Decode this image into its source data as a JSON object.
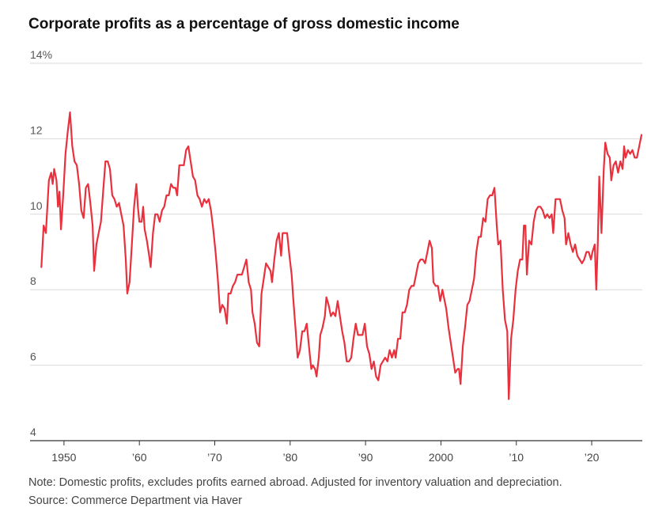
{
  "chart_data": {
    "type": "line",
    "title": "Corporate profits as a percentage of gross domestic income",
    "xlabel": "",
    "ylabel": "",
    "ylim": [
      4,
      14
    ],
    "xlim": [
      1945.5,
      2026.5
    ],
    "y_ticks": [
      {
        "value": 14,
        "label": "14%"
      },
      {
        "value": 12,
        "label": "12"
      },
      {
        "value": 10,
        "label": "10"
      },
      {
        "value": 8,
        "label": "8"
      },
      {
        "value": 6,
        "label": "6"
      },
      {
        "value": 4,
        "label": "4"
      }
    ],
    "x_ticks": [
      {
        "value": 1950,
        "label": "1950"
      },
      {
        "value": 1960,
        "label": "’60"
      },
      {
        "value": 1970,
        "label": "’70"
      },
      {
        "value": 1980,
        "label": "’80"
      },
      {
        "value": 1990,
        "label": "’90"
      },
      {
        "value": 2000,
        "label": "2000"
      },
      {
        "value": 2010,
        "label": "’10"
      },
      {
        "value": 2020,
        "label": "’20"
      }
    ],
    "grid": true,
    "legend": "none",
    "series": [
      {
        "color": "#e8313d",
        "points": [
          [
            1947.0,
            8.6
          ],
          [
            1947.3,
            9.7
          ],
          [
            1947.6,
            9.5
          ],
          [
            1948.0,
            10.9
          ],
          [
            1948.3,
            11.1
          ],
          [
            1948.5,
            10.8
          ],
          [
            1948.7,
            11.2
          ],
          [
            1949.0,
            10.9
          ],
          [
            1949.2,
            10.2
          ],
          [
            1949.4,
            10.6
          ],
          [
            1949.6,
            9.6
          ],
          [
            1949.9,
            10.5
          ],
          [
            1950.2,
            11.6
          ],
          [
            1950.5,
            12.2
          ],
          [
            1950.8,
            12.7
          ],
          [
            1951.1,
            11.8
          ],
          [
            1951.4,
            11.4
          ],
          [
            1951.7,
            11.3
          ],
          [
            1952.0,
            10.8
          ],
          [
            1952.3,
            10.1
          ],
          [
            1952.6,
            9.9
          ],
          [
            1952.9,
            10.7
          ],
          [
            1953.2,
            10.8
          ],
          [
            1953.5,
            10.3
          ],
          [
            1953.8,
            9.7
          ],
          [
            1954.0,
            8.5
          ],
          [
            1954.3,
            9.2
          ],
          [
            1954.6,
            9.5
          ],
          [
            1954.9,
            9.8
          ],
          [
            1955.2,
            10.6
          ],
          [
            1955.5,
            11.4
          ],
          [
            1955.8,
            11.4
          ],
          [
            1956.1,
            11.2
          ],
          [
            1956.4,
            10.5
          ],
          [
            1956.7,
            10.4
          ],
          [
            1957.0,
            10.2
          ],
          [
            1957.3,
            10.3
          ],
          [
            1957.6,
            10.0
          ],
          [
            1957.9,
            9.7
          ],
          [
            1958.2,
            8.8
          ],
          [
            1958.4,
            7.9
          ],
          [
            1958.7,
            8.2
          ],
          [
            1959.0,
            9.2
          ],
          [
            1959.3,
            10.2
          ],
          [
            1959.6,
            10.8
          ],
          [
            1959.8,
            10.2
          ],
          [
            1960.0,
            9.8
          ],
          [
            1960.3,
            9.8
          ],
          [
            1960.5,
            10.2
          ],
          [
            1960.7,
            9.6
          ],
          [
            1961.0,
            9.3
          ],
          [
            1961.3,
            8.9
          ],
          [
            1961.5,
            8.6
          ],
          [
            1961.8,
            9.5
          ],
          [
            1962.1,
            10.0
          ],
          [
            1962.4,
            10.0
          ],
          [
            1962.7,
            9.8
          ],
          [
            1963.0,
            10.1
          ],
          [
            1963.3,
            10.2
          ],
          [
            1963.6,
            10.5
          ],
          [
            1963.9,
            10.5
          ],
          [
            1964.2,
            10.8
          ],
          [
            1964.5,
            10.7
          ],
          [
            1964.8,
            10.7
          ],
          [
            1965.0,
            10.5
          ],
          [
            1965.3,
            11.3
          ],
          [
            1965.6,
            11.3
          ],
          [
            1965.9,
            11.3
          ],
          [
            1966.2,
            11.7
          ],
          [
            1966.5,
            11.8
          ],
          [
            1966.8,
            11.4
          ],
          [
            1967.1,
            11.0
          ],
          [
            1967.4,
            10.9
          ],
          [
            1967.7,
            10.5
          ],
          [
            1968.0,
            10.4
          ],
          [
            1968.3,
            10.2
          ],
          [
            1968.6,
            10.4
          ],
          [
            1968.9,
            10.3
          ],
          [
            1969.2,
            10.4
          ],
          [
            1969.5,
            10.1
          ],
          [
            1969.8,
            9.6
          ],
          [
            1970.1,
            9.0
          ],
          [
            1970.4,
            8.3
          ],
          [
            1970.7,
            7.4
          ],
          [
            1971.0,
            7.6
          ],
          [
            1971.3,
            7.5
          ],
          [
            1971.6,
            7.1
          ],
          [
            1971.8,
            7.9
          ],
          [
            1972.1,
            7.9
          ],
          [
            1972.4,
            8.1
          ],
          [
            1972.7,
            8.2
          ],
          [
            1973.0,
            8.4
          ],
          [
            1973.3,
            8.4
          ],
          [
            1973.6,
            8.4
          ],
          [
            1973.9,
            8.6
          ],
          [
            1974.2,
            8.8
          ],
          [
            1974.5,
            8.2
          ],
          [
            1974.8,
            8.0
          ],
          [
            1975.0,
            7.4
          ],
          [
            1975.3,
            7.1
          ],
          [
            1975.6,
            6.6
          ],
          [
            1975.9,
            6.5
          ],
          [
            1976.2,
            7.9
          ],
          [
            1976.5,
            8.3
          ],
          [
            1976.8,
            8.7
          ],
          [
            1977.1,
            8.6
          ],
          [
            1977.4,
            8.5
          ],
          [
            1977.6,
            8.2
          ],
          [
            1977.9,
            8.8
          ],
          [
            1978.2,
            9.3
          ],
          [
            1978.5,
            9.5
          ],
          [
            1978.8,
            8.9
          ],
          [
            1979.0,
            9.5
          ],
          [
            1979.3,
            9.5
          ],
          [
            1979.6,
            9.5
          ],
          [
            1979.9,
            8.9
          ],
          [
            1980.2,
            8.4
          ],
          [
            1980.4,
            7.8
          ],
          [
            1980.7,
            7.0
          ],
          [
            1981.0,
            6.2
          ],
          [
            1981.3,
            6.4
          ],
          [
            1981.6,
            6.9
          ],
          [
            1981.9,
            6.9
          ],
          [
            1982.2,
            7.1
          ],
          [
            1982.5,
            6.5
          ],
          [
            1982.8,
            5.9
          ],
          [
            1983.0,
            6.0
          ],
          [
            1983.3,
            5.9
          ],
          [
            1983.5,
            5.7
          ],
          [
            1983.8,
            6.2
          ],
          [
            1984.0,
            6.8
          ],
          [
            1984.3,
            7.0
          ],
          [
            1984.6,
            7.3
          ],
          [
            1984.8,
            7.8
          ],
          [
            1985.1,
            7.6
          ],
          [
            1985.4,
            7.3
          ],
          [
            1985.7,
            7.4
          ],
          [
            1986.0,
            7.3
          ],
          [
            1986.3,
            7.7
          ],
          [
            1986.6,
            7.3
          ],
          [
            1986.9,
            6.9
          ],
          [
            1987.2,
            6.6
          ],
          [
            1987.5,
            6.1
          ],
          [
            1987.8,
            6.1
          ],
          [
            1988.1,
            6.2
          ],
          [
            1988.4,
            6.7
          ],
          [
            1988.7,
            7.1
          ],
          [
            1989.0,
            6.8
          ],
          [
            1989.3,
            6.8
          ],
          [
            1989.6,
            6.8
          ],
          [
            1989.9,
            7.1
          ],
          [
            1990.2,
            6.5
          ],
          [
            1990.5,
            6.3
          ],
          [
            1990.8,
            5.9
          ],
          [
            1991.1,
            6.1
          ],
          [
            1991.4,
            5.7
          ],
          [
            1991.7,
            5.6
          ],
          [
            1992.0,
            6.0
          ],
          [
            1992.3,
            6.1
          ],
          [
            1992.6,
            6.2
          ],
          [
            1992.9,
            6.1
          ],
          [
            1993.2,
            6.4
          ],
          [
            1993.5,
            6.2
          ],
          [
            1993.8,
            6.4
          ],
          [
            1994.0,
            6.2
          ],
          [
            1994.3,
            6.7
          ],
          [
            1994.6,
            6.7
          ],
          [
            1994.9,
            7.4
          ],
          [
            1995.2,
            7.4
          ],
          [
            1995.5,
            7.6
          ],
          [
            1995.8,
            8.0
          ],
          [
            1996.1,
            8.1
          ],
          [
            1996.4,
            8.1
          ],
          [
            1996.7,
            8.4
          ],
          [
            1997.0,
            8.7
          ],
          [
            1997.3,
            8.8
          ],
          [
            1997.6,
            8.8
          ],
          [
            1997.9,
            8.7
          ],
          [
            1998.2,
            9.0
          ],
          [
            1998.5,
            9.3
          ],
          [
            1998.8,
            9.1
          ],
          [
            1999.0,
            8.2
          ],
          [
            1999.3,
            8.1
          ],
          [
            1999.6,
            8.1
          ],
          [
            1999.9,
            7.7
          ],
          [
            2000.2,
            8.0
          ],
          [
            2000.4,
            7.8
          ],
          [
            2000.7,
            7.5
          ],
          [
            2001.0,
            7.0
          ],
          [
            2001.3,
            6.6
          ],
          [
            2001.6,
            6.2
          ],
          [
            2001.9,
            5.8
          ],
          [
            2002.2,
            5.9
          ],
          [
            2002.4,
            5.9
          ],
          [
            2002.6,
            5.5
          ],
          [
            2002.9,
            6.5
          ],
          [
            2003.2,
            7.0
          ],
          [
            2003.5,
            7.6
          ],
          [
            2003.8,
            7.7
          ],
          [
            2004.1,
            8.0
          ],
          [
            2004.4,
            8.3
          ],
          [
            2004.7,
            9.0
          ],
          [
            2005.0,
            9.4
          ],
          [
            2005.3,
            9.4
          ],
          [
            2005.6,
            9.9
          ],
          [
            2005.9,
            9.8
          ],
          [
            2006.2,
            10.4
          ],
          [
            2006.5,
            10.5
          ],
          [
            2006.8,
            10.5
          ],
          [
            2007.1,
            10.7
          ],
          [
            2007.4,
            9.7
          ],
          [
            2007.6,
            9.2
          ],
          [
            2007.9,
            9.3
          ],
          [
            2008.2,
            8.0
          ],
          [
            2008.5,
            7.2
          ],
          [
            2008.8,
            6.9
          ],
          [
            2009.0,
            5.1
          ],
          [
            2009.3,
            6.7
          ],
          [
            2009.6,
            7.2
          ],
          [
            2009.9,
            8.0
          ],
          [
            2010.2,
            8.5
          ],
          [
            2010.5,
            8.8
          ],
          [
            2010.8,
            8.8
          ],
          [
            2011.0,
            9.7
          ],
          [
            2011.2,
            9.7
          ],
          [
            2011.4,
            8.4
          ],
          [
            2011.7,
            9.3
          ],
          [
            2012.0,
            9.2
          ],
          [
            2012.3,
            9.8
          ],
          [
            2012.6,
            10.1
          ],
          [
            2012.9,
            10.2
          ],
          [
            2013.2,
            10.2
          ],
          [
            2013.5,
            10.1
          ],
          [
            2013.8,
            9.9
          ],
          [
            2014.1,
            10.0
          ],
          [
            2014.4,
            9.9
          ],
          [
            2014.7,
            10.0
          ],
          [
            2014.9,
            9.5
          ],
          [
            2015.2,
            10.4
          ],
          [
            2015.5,
            10.4
          ],
          [
            2015.8,
            10.4
          ],
          [
            2016.1,
            10.1
          ],
          [
            2016.4,
            9.9
          ],
          [
            2016.6,
            9.2
          ],
          [
            2016.9,
            9.5
          ],
          [
            2017.2,
            9.2
          ],
          [
            2017.5,
            9.0
          ],
          [
            2017.8,
            9.2
          ],
          [
            2018.1,
            8.9
          ],
          [
            2018.4,
            8.8
          ],
          [
            2018.7,
            8.7
          ],
          [
            2019.0,
            8.8
          ],
          [
            2019.3,
            9.0
          ],
          [
            2019.6,
            9.0
          ],
          [
            2019.9,
            8.8
          ],
          [
            2020.1,
            9.0
          ],
          [
            2020.4,
            9.2
          ],
          [
            2020.6,
            8.0
          ],
          [
            2020.8,
            9.2
          ],
          [
            2021.0,
            11.0
          ],
          [
            2021.3,
            9.5
          ],
          [
            2021.6,
            11.2
          ],
          [
            2021.8,
            11.9
          ],
          [
            2022.1,
            11.6
          ],
          [
            2022.4,
            11.5
          ],
          [
            2022.6,
            10.9
          ],
          [
            2022.9,
            11.3
          ],
          [
            2023.2,
            11.4
          ],
          [
            2023.5,
            11.1
          ],
          [
            2023.8,
            11.4
          ],
          [
            2024.1,
            11.2
          ],
          [
            2024.3,
            11.8
          ],
          [
            2024.5,
            11.5
          ],
          [
            2024.8,
            11.7
          ],
          [
            2025.1,
            11.6
          ],
          [
            2025.4,
            11.7
          ],
          [
            2025.7,
            11.5
          ],
          [
            2026.0,
            11.5
          ],
          [
            2026.3,
            11.8
          ],
          [
            2026.6,
            12.1
          ]
        ]
      }
    ]
  },
  "footer": {
    "note": "Note: Domestic profits, excludes profits earned abroad. Adjusted for inventory valuation and depreciation.",
    "source": "Source: Commerce Department via Haver"
  }
}
